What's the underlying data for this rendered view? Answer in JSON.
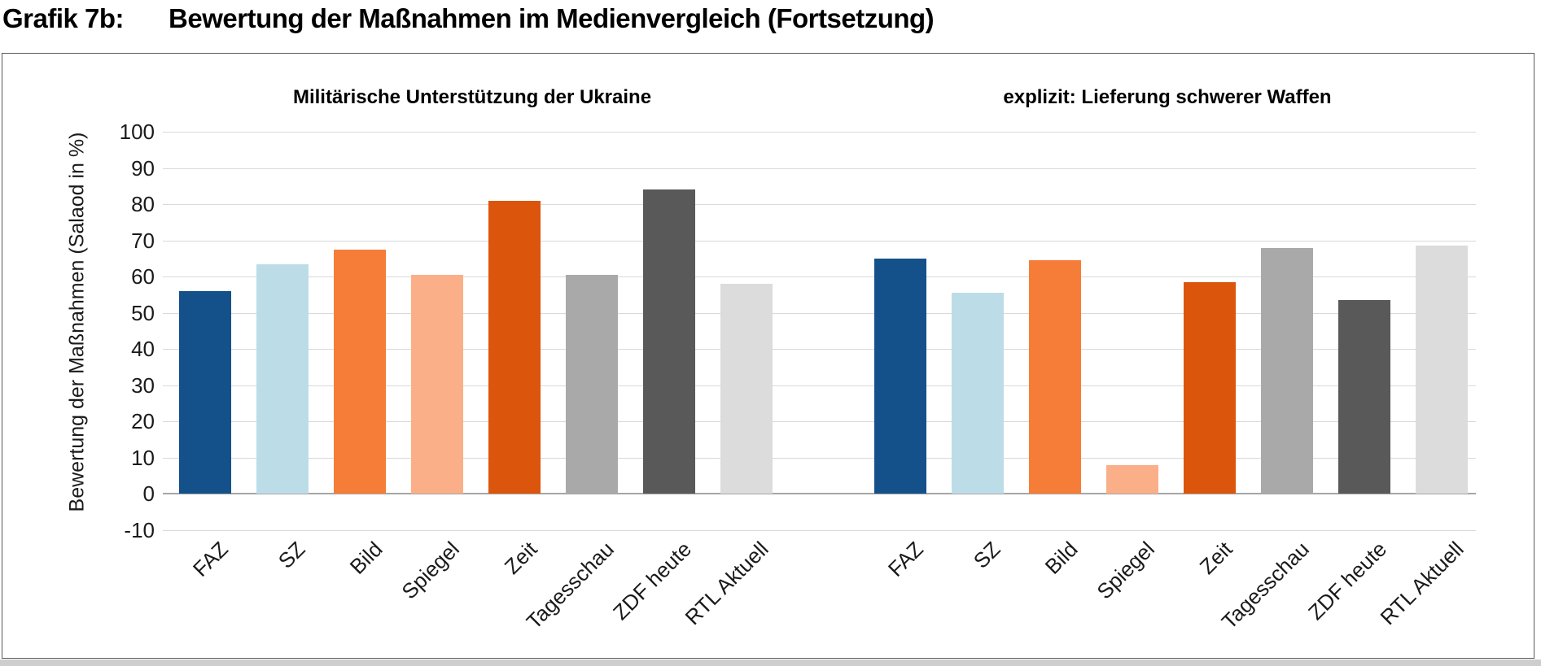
{
  "header": {
    "label": "Grafik 7b:",
    "title": "Bewertung der Maßnahmen im Medienvergleich (Fortsetzung)"
  },
  "chart_data": {
    "type": "bar",
    "categories": [
      "FAZ",
      "SZ",
      "Bild",
      "Spiegel",
      "Zeit",
      "Tagesschau",
      "ZDF heute",
      "RTL Aktuell"
    ],
    "groups": [
      {
        "title": "Militärische Unterstützung der Ukraine",
        "values": [
          56,
          63.5,
          67.5,
          60.5,
          81,
          60.5,
          84,
          58
        ]
      },
      {
        "title": "explizit: Lieferung schwerer Waffen",
        "values": [
          65,
          55.5,
          64.5,
          8,
          58.5,
          68,
          53.5,
          68.5
        ]
      }
    ],
    "ylabel": "Bewertung der Maßnahmen (Salaod in %)",
    "xlabel": "",
    "ylim": [
      -10,
      100
    ],
    "yticks": [
      100,
      90,
      80,
      70,
      60,
      50,
      40,
      30,
      20,
      10,
      0,
      -10
    ],
    "grid": true,
    "legend": "none",
    "bar_colors": [
      "#14518A",
      "#BCDDE8",
      "#F67D38",
      "#FBAF88",
      "#DC550C",
      "#A9A9A9",
      "#595959",
      "#DCDCDC"
    ]
  },
  "colors": {
    "gridline": "#D9D9D9",
    "zero_line": "#A6A6A6",
    "frame_border": "#595959",
    "bottom_strip": "#CFCECE",
    "text": "#1a1a1a"
  }
}
